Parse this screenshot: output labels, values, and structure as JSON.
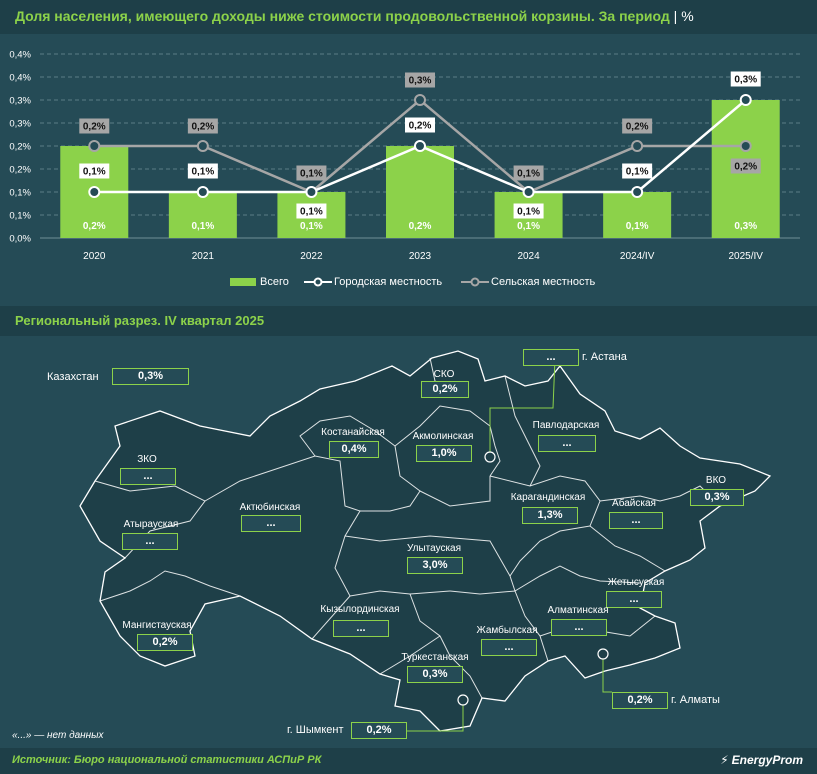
{
  "header": {
    "title": "Доля населения, имеющего доходы ниже стоимости продовольственной корзины. За период",
    "separator": "|",
    "unit": "%"
  },
  "chart_data": {
    "type": "bar",
    "categories": [
      "2020",
      "2021",
      "2022",
      "2023",
      "2024",
      "2024/IV",
      "2025/IV"
    ],
    "y_tick_labels": [
      "0,0%",
      "0,1%",
      "0,1%",
      "0,2%",
      "0,2%",
      "0,3%",
      "0,3%",
      "0,4%",
      "0,4%"
    ],
    "ylim": [
      0,
      0.4
    ],
    "grid": true,
    "legend_position": "bottom",
    "bar_color": "#8cd24a",
    "series": [
      {
        "name": "Всего",
        "kind": "bar",
        "color": "#8cd24a",
        "values": [
          0.2,
          0.1,
          0.1,
          0.2,
          0.1,
          0.1,
          0.3
        ],
        "labels": [
          "0,2%",
          "0,1%",
          "0,1%",
          "0,2%",
          "0,1%",
          "0,1%",
          "0,3%"
        ]
      },
      {
        "name": "Городская местность",
        "kind": "line",
        "color": "#ffffff",
        "values": [
          0.1,
          0.1,
          0.1,
          0.2,
          0.1,
          0.1,
          0.3
        ],
        "labels": [
          "0,1%",
          "0,1%",
          "0,1%",
          "0,2%",
          "0,1%",
          "0,1%",
          "0,3%"
        ]
      },
      {
        "name": "Сельская местность",
        "kind": "line",
        "color": "#a6a6a6",
        "values": [
          0.2,
          0.2,
          0.1,
          0.3,
          0.1,
          0.2,
          0.2
        ],
        "labels": [
          "0,2%",
          "0,2%",
          "0,1%",
          "0,3%",
          "0,1%",
          "0,2%",
          "0,2%"
        ]
      }
    ]
  },
  "legend": {
    "total": "Всего",
    "urban": "Городская местность",
    "rural": "Сельская местность"
  },
  "map_section": {
    "title": "Региональный разрез. IV квартал 2025",
    "kazakhstan_label": "Казахстан",
    "kazakhstan_value": "0,3%",
    "regions": [
      {
        "name": "СКО",
        "value": "0,2%"
      },
      {
        "name": "Костанайская",
        "value": "0,4%"
      },
      {
        "name": "Акмолинская",
        "value": "1,0%"
      },
      {
        "name": "Павлодарская",
        "value": "..."
      },
      {
        "name": "ЗКО",
        "value": "..."
      },
      {
        "name": "Актюбинская",
        "value": "..."
      },
      {
        "name": "Атырауская",
        "value": "..."
      },
      {
        "name": "Карагандинская",
        "value": "1,3%"
      },
      {
        "name": "Абайская",
        "value": "..."
      },
      {
        "name": "ВКО",
        "value": "0,3%"
      },
      {
        "name": "Улытауская",
        "value": "3,0%"
      },
      {
        "name": "Жетысуская",
        "value": "..."
      },
      {
        "name": "Мангистауская",
        "value": "0,2%"
      },
      {
        "name": "Кызылординская",
        "value": "..."
      },
      {
        "name": "Алматинская",
        "value": "..."
      },
      {
        "name": "Жамбылская",
        "value": "..."
      },
      {
        "name": "Туркестанская",
        "value": "0,3%"
      }
    ],
    "cities": [
      {
        "name": "г. Астана",
        "value": "..."
      },
      {
        "name": "г. Алматы",
        "value": "0,2%"
      },
      {
        "name": "г. Шымкент",
        "value": "0,2%"
      }
    ],
    "footnote": "«...» — нет данных"
  },
  "footer": {
    "source": "Источник: Бюро национальной статистики АСПиР РК",
    "brand": "EnergyProm"
  }
}
